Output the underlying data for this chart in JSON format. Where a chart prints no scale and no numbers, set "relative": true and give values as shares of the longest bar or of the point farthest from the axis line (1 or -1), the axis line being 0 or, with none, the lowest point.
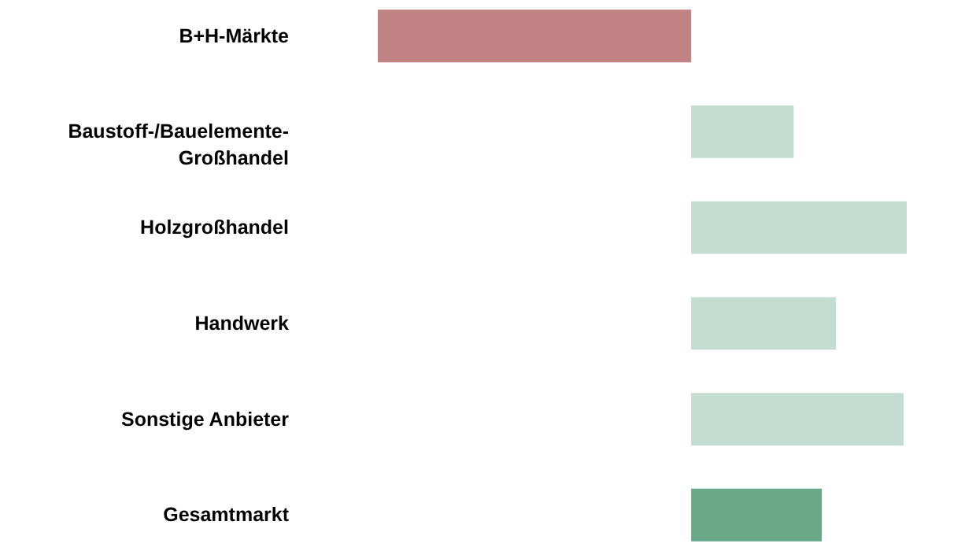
{
  "chart_data": {
    "type": "bar",
    "orientation": "horizontal",
    "relative": true,
    "categories": [
      "B+H-Märkte",
      "Baustoff-/Bauelemente-Großhandel",
      "Holzgroßhandel",
      "Handwerk",
      "Sonstige Anbieter",
      "Gesamtmarkt"
    ],
    "values": [
      -1,
      0.327,
      0.688,
      0.462,
      0.678,
      0.417
    ],
    "colors": [
      "#c08282",
      "#c3ddd0",
      "#c3ddd0",
      "#c3ddd0",
      "#c3ddd0",
      "#69a98a"
    ]
  }
}
